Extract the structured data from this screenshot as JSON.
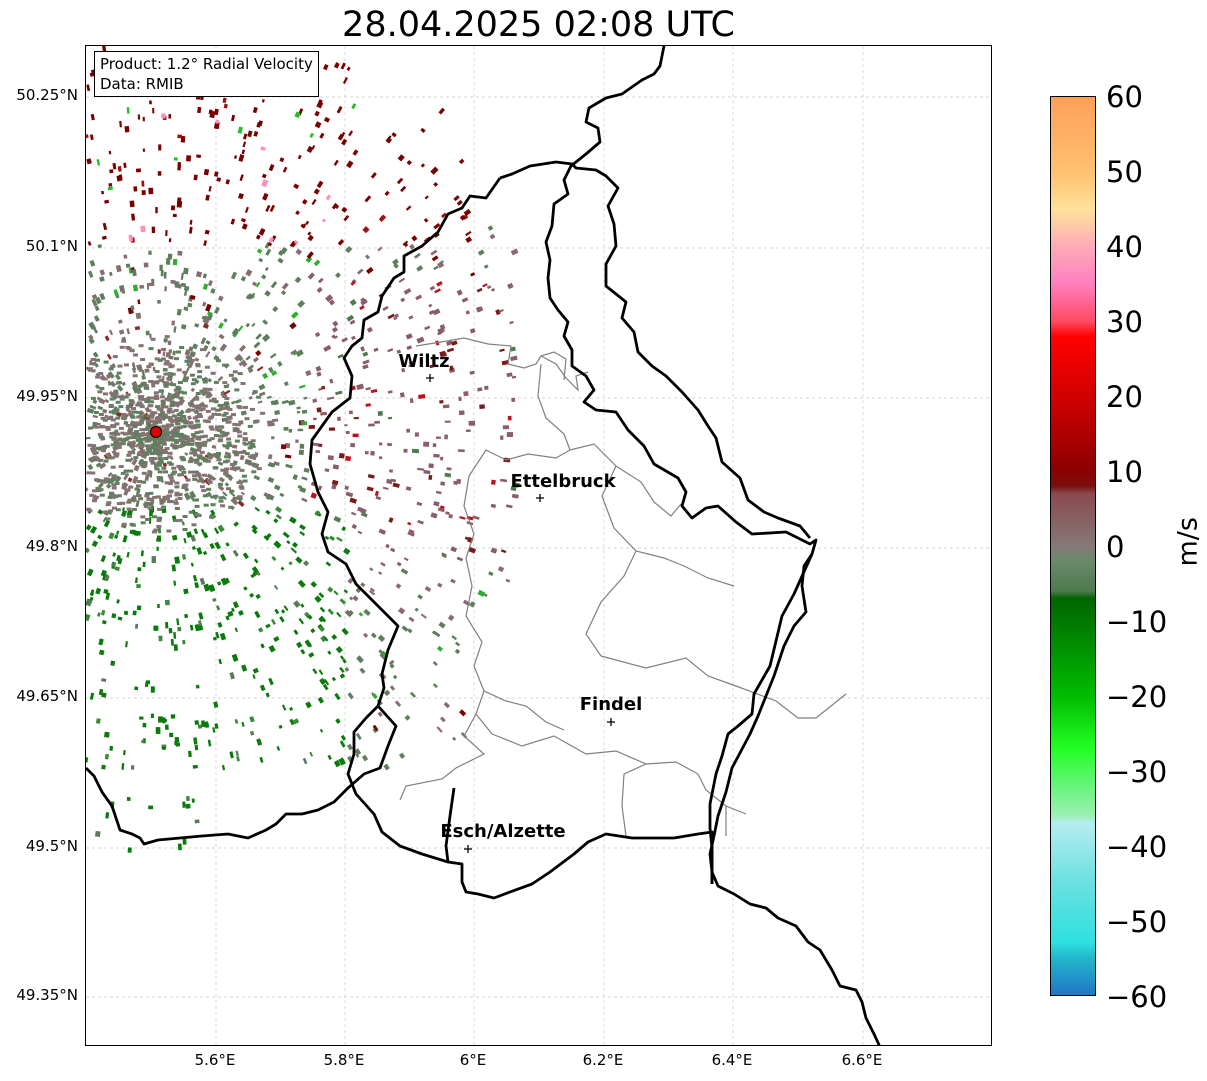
{
  "title": "28.04.2025 02:08 UTC",
  "info": {
    "product": "Product: 1.2° Radial Velocity",
    "data": "Data: RMIB"
  },
  "map": {
    "lat_ticks": [
      "50.25°N",
      "50.1°N",
      "49.95°N",
      "49.8°N",
      "49.65°N",
      "49.5°N",
      "49.35°N"
    ],
    "lon_ticks": [
      "5.6°E",
      "5.8°E",
      "6°E",
      "6.2°E",
      "6.4°E",
      "6.6°E"
    ],
    "cities": [
      {
        "name": "Wiltz"
      },
      {
        "name": "Ettelbruck"
      },
      {
        "name": "Findel"
      },
      {
        "name": "Esch/Alzette"
      }
    ],
    "radar_site_color": "#e00000"
  },
  "colorbar": {
    "unit": "m/s",
    "labels": [
      "60",
      "50",
      "40",
      "30",
      "20",
      "10",
      "0",
      "−10",
      "−20",
      "−30",
      "−40",
      "−50",
      "−60"
    ],
    "range": [
      -60,
      60
    ],
    "stops": [
      {
        "value": 60,
        "color": "#ff9f5a"
      },
      {
        "value": 50,
        "color": "#ffc070"
      },
      {
        "value": 45,
        "color": "#ffe29a"
      },
      {
        "value": 40,
        "color": "#ffaab8"
      },
      {
        "value": 35,
        "color": "#ff7fbf"
      },
      {
        "value": 30,
        "color": "#ff4a62"
      },
      {
        "value": 28,
        "color": "#ff0000"
      },
      {
        "value": 20,
        "color": "#d10000"
      },
      {
        "value": 10,
        "color": "#8b0000"
      },
      {
        "value": 8,
        "color": "#7a1010"
      },
      {
        "value": 7,
        "color": "#8a4a4e"
      },
      {
        "value": 0,
        "color": "#857878"
      },
      {
        "value": -2,
        "color": "#6a8a6a"
      },
      {
        "value": -6,
        "color": "#4f7a4f"
      },
      {
        "value": -7,
        "color": "#006400"
      },
      {
        "value": -20,
        "color": "#00bb00"
      },
      {
        "value": -27,
        "color": "#22ff22"
      },
      {
        "value": -32,
        "color": "#66f57a"
      },
      {
        "value": -36,
        "color": "#9bf0b0"
      },
      {
        "value": -37,
        "color": "#b5edf0"
      },
      {
        "value": -45,
        "color": "#6ae0e0"
      },
      {
        "value": -53,
        "color": "#2ee0e0"
      },
      {
        "value": -55,
        "color": "#22b8cc"
      },
      {
        "value": -60,
        "color": "#1f77c4"
      }
    ]
  }
}
